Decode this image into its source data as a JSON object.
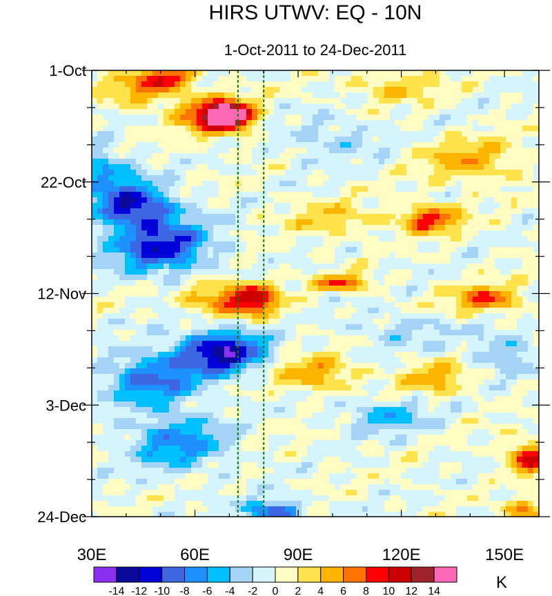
{
  "chart_data": {
    "type": "heatmap",
    "title": "HIRS UTWV: EQ - 10N",
    "subtitle": "1-Oct-2011 to 24-Dec-2011",
    "x_axis": {
      "range": [
        30,
        160
      ],
      "ticks": [
        30,
        60,
        90,
        120,
        150
      ],
      "tick_labels": [
        "30E",
        "60E",
        "90E",
        "120E",
        "150E"
      ]
    },
    "y_axis": {
      "range_days_from_oct1": [
        0,
        84
      ],
      "ticks": [
        0,
        21,
        42,
        63,
        84
      ],
      "tick_labels": [
        "1-Oct",
        "22-Oct",
        "12-Nov",
        "3-Dec",
        "24-Dec"
      ]
    },
    "reference_lines_lon": [
      72.5,
      80
    ],
    "colorbar": {
      "unit": "K",
      "levels": [
        -14,
        -12,
        -10,
        -8,
        -6,
        -4,
        -2,
        0,
        2,
        4,
        6,
        8,
        10,
        12,
        14
      ],
      "level_labels": [
        "-14",
        "-12",
        "-10",
        "-8",
        "-6",
        "-4",
        "-2",
        "0",
        "2",
        "4",
        "6",
        "8",
        "10",
        "12",
        "14"
      ],
      "colors": [
        "#8b2ff0",
        "#0c0a9a",
        "#0000d8",
        "#3d66e2",
        "#1e90ff",
        "#00bfff",
        "#a6d4f7",
        "#d5f4fb",
        "#fffdc4",
        "#ffe24c",
        "#ffb400",
        "#ff7300",
        "#ff0000",
        "#cc0000",
        "#a1232a",
        "#ff69b4"
      ]
    },
    "features": [
      {
        "lon": 70,
        "day": 8.5,
        "value": 14,
        "lon_radius": 6,
        "day_radius": 2
      },
      {
        "lon": 66,
        "day": 8.5,
        "value": 11,
        "lon_radius": 10,
        "day_radius": 3.5
      },
      {
        "lon": 52,
        "day": 1.5,
        "value": 9,
        "lon_radius": 8,
        "day_radius": 2
      },
      {
        "lon": 44,
        "day": 4,
        "value": 5,
        "lon_radius": 10,
        "day_radius": 3
      },
      {
        "lon": 118,
        "day": 3,
        "value": 4,
        "lon_radius": 12,
        "day_radius": 3
      },
      {
        "lon": 140,
        "day": 17,
        "value": 5,
        "lon_radius": 14,
        "day_radius": 4
      },
      {
        "lon": 128,
        "day": 28,
        "value": 9,
        "lon_radius": 9,
        "day_radius": 2.5
      },
      {
        "lon": 100,
        "day": 28,
        "value": 4,
        "lon_radius": 12,
        "day_radius": 3
      },
      {
        "lon": 77,
        "day": 43,
        "value": 11,
        "lon_radius": 7,
        "day_radius": 3
      },
      {
        "lon": 65,
        "day": 43,
        "value": 6,
        "lon_radius": 9,
        "day_radius": 3
      },
      {
        "lon": 103,
        "day": 40,
        "value": 8,
        "lon_radius": 8,
        "day_radius": 1.5
      },
      {
        "lon": 145,
        "day": 43,
        "value": 8,
        "lon_radius": 10,
        "day_radius": 2.5
      },
      {
        "lon": 95,
        "day": 57,
        "value": 6,
        "lon_radius": 12,
        "day_radius": 3
      },
      {
        "lon": 130,
        "day": 58,
        "value": 5,
        "lon_radius": 10,
        "day_radius": 3
      },
      {
        "lon": 157,
        "day": 73,
        "value": 10,
        "lon_radius": 6,
        "day_radius": 3
      },
      {
        "lon": 157,
        "day": 83,
        "value": 7,
        "lon_radius": 6,
        "day_radius": 2
      },
      {
        "lon": 40,
        "day": 24,
        "value": -7,
        "lon_radius": 10,
        "day_radius": 5
      },
      {
        "lon": 50,
        "day": 33,
        "value": -11,
        "lon_radius": 14,
        "day_radius": 5
      },
      {
        "lon": 45,
        "day": 26,
        "value": -6,
        "lon_radius": 12,
        "day_radius": 3
      },
      {
        "lon": 68,
        "day": 53,
        "value": -13,
        "lon_radius": 12,
        "day_radius": 4
      },
      {
        "lon": 48,
        "day": 58,
        "value": -8,
        "lon_radius": 14,
        "day_radius": 5
      },
      {
        "lon": 55,
        "day": 70,
        "value": -7,
        "lon_radius": 14,
        "day_radius": 5
      },
      {
        "lon": 83,
        "day": 83,
        "value": -10,
        "lon_radius": 8,
        "day_radius": 2
      },
      {
        "lon": 115,
        "day": 65,
        "value": -5,
        "lon_radius": 12,
        "day_radius": 3
      },
      {
        "lon": 150,
        "day": 53,
        "value": -4,
        "lon_radius": 10,
        "day_radius": 4
      },
      {
        "lon": 100,
        "day": 13,
        "value": -3,
        "lon_radius": 14,
        "day_radius": 4
      },
      {
        "lon": 33,
        "day": 18,
        "value": -5,
        "lon_radius": 6,
        "day_radius": 4
      },
      {
        "lon": 120,
        "day": 49,
        "value": -3,
        "lon_radius": 14,
        "day_radius": 3
      }
    ]
  }
}
